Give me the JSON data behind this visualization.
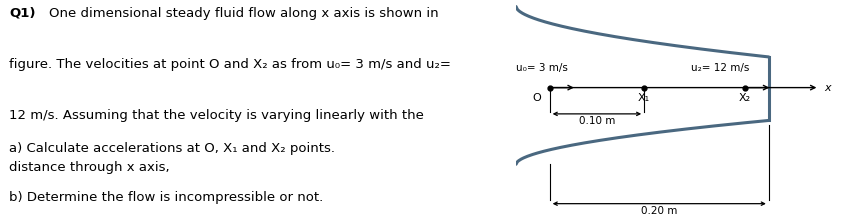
{
  "bg_color": "#ffffff",
  "text_color": "#000000",
  "part_a": "a) Calculate accelerations at O, X₁ and X₂ points.",
  "part_b": "b) Determine the flow is incompressible or not.",
  "label_u0": "u₀= 3 m/s",
  "label_u2": "u₂= 12 m/s",
  "label_O": "O",
  "label_X1": "X₁",
  "label_X2": "X₂",
  "label_x": "x",
  "label_010": "0.10 m",
  "label_020": "0.20 m",
  "duct_color": "#4a6880",
  "arrow_color": "#000000",
  "fig_width": 8.53,
  "fig_height": 2.19,
  "dpi": 100
}
